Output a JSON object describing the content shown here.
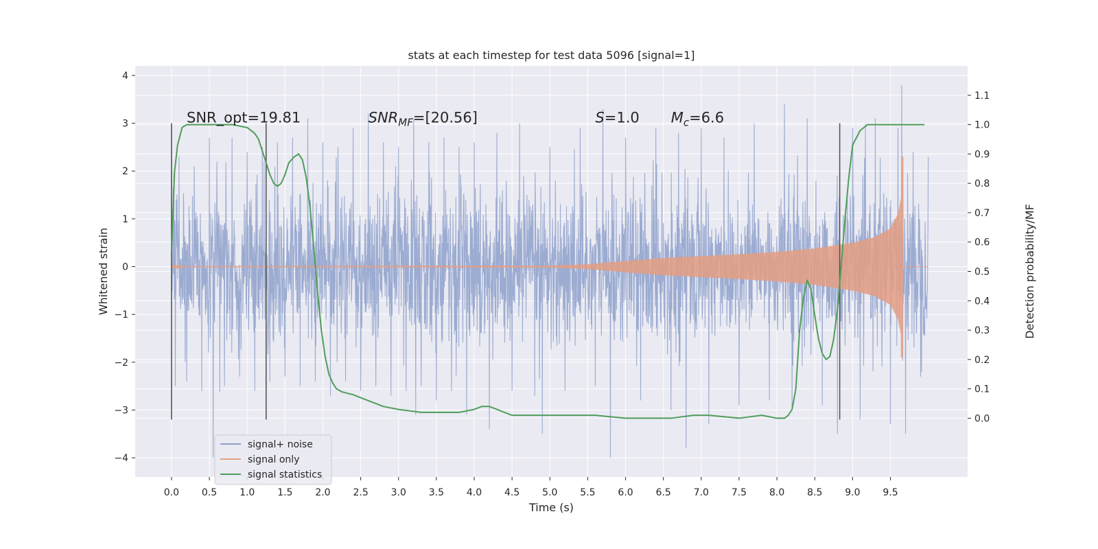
{
  "chart_data": {
    "type": "line",
    "title": "stats at each timestep for test data 5096 [signal=1]",
    "xlabel": "Time (s)",
    "ylabel_left": "Whitened strain",
    "ylabel_right": "Detection probability/MF",
    "xlim": [
      -0.48,
      10.52
    ],
    "ylim_left": [
      -4.4,
      4.2
    ],
    "ylim_right": [
      -0.2,
      1.2
    ],
    "x_ticks": [
      0.0,
      0.5,
      1.0,
      1.5,
      2.0,
      2.5,
      3.0,
      3.5,
      4.0,
      4.5,
      5.0,
      5.5,
      6.0,
      6.5,
      7.0,
      7.5,
      8.0,
      8.5,
      9.0,
      9.5
    ],
    "x_tick_labels": [
      "0.0",
      "0.5",
      "1.0",
      "1.5",
      "2.0",
      "2.5",
      "3.0",
      "3.5",
      "4.0",
      "4.5",
      "5.0",
      "5.5",
      "6.0",
      "6.5",
      "7.0",
      "7.5",
      "8.0",
      "8.5",
      "9.0",
      "9.5"
    ],
    "y_left_ticks": [
      -4,
      -3,
      -2,
      -1,
      0,
      1,
      2,
      3,
      4
    ],
    "y_left_tick_labels": [
      "−4",
      "−3",
      "−2",
      "−1",
      "0",
      "1",
      "2",
      "3",
      "4"
    ],
    "y_right_ticks": [
      0.0,
      0.1,
      0.2,
      0.3,
      0.4,
      0.5,
      0.6,
      0.7,
      0.8,
      0.9,
      1.0,
      1.1
    ],
    "y_right_tick_labels": [
      "0.0",
      "0.1",
      "0.2",
      "0.3",
      "0.4",
      "0.5",
      "0.6",
      "0.7",
      "0.8",
      "0.9",
      "1.0",
      "1.1"
    ],
    "grid": true,
    "legend_position": "lower-left",
    "series": [
      {
        "name": "signal+ noise",
        "color": "#8da0cb",
        "axis": "left",
        "x_range": [
          0.0,
          10.0
        ],
        "typical_amplitude": 1.8,
        "peak_values": [
          -4.0,
          3.8
        ],
        "samples": [
          [
            0.0,
            1.9
          ],
          [
            0.05,
            -2.5
          ],
          [
            0.1,
            2.3
          ],
          [
            0.2,
            -2.4
          ],
          [
            0.3,
            2.1
          ],
          [
            0.4,
            -2.6
          ],
          [
            0.5,
            2.7
          ],
          [
            0.55,
            -4.0
          ],
          [
            0.6,
            2.2
          ],
          [
            0.7,
            -2.5
          ],
          [
            0.8,
            2.7
          ],
          [
            0.9,
            -2.3
          ],
          [
            1.0,
            2.4
          ],
          [
            1.1,
            -2.6
          ],
          [
            1.2,
            2.5
          ],
          [
            1.3,
            -2.4
          ],
          [
            1.4,
            2.6
          ],
          [
            1.5,
            -2.3
          ],
          [
            1.6,
            2.7
          ],
          [
            1.7,
            -2.5
          ],
          [
            1.8,
            3.1
          ],
          [
            1.9,
            -2.4
          ],
          [
            2.0,
            2.6
          ],
          [
            2.1,
            -2.7
          ],
          [
            2.2,
            2.5
          ],
          [
            2.3,
            -2.4
          ],
          [
            2.4,
            2.9
          ],
          [
            2.5,
            -2.6
          ],
          [
            2.6,
            3.2
          ],
          [
            2.7,
            -2.5
          ],
          [
            2.8,
            2.6
          ],
          [
            2.9,
            -2.7
          ],
          [
            3.0,
            2.5
          ],
          [
            3.1,
            -2.6
          ],
          [
            3.2,
            3.1
          ],
          [
            3.3,
            -2.5
          ],
          [
            3.4,
            2.6
          ],
          [
            3.5,
            -2.8
          ],
          [
            3.6,
            2.7
          ],
          [
            3.7,
            -2.6
          ],
          [
            3.8,
            2.5
          ],
          [
            3.9,
            -3.1
          ],
          [
            4.0,
            2.6
          ],
          [
            4.2,
            -3.4
          ],
          [
            4.3,
            2.8
          ],
          [
            4.5,
            -2.6
          ],
          [
            4.6,
            3.0
          ],
          [
            4.8,
            -2.7
          ],
          [
            4.9,
            -3.5
          ],
          [
            5.0,
            2.5
          ],
          [
            5.2,
            -2.6
          ],
          [
            5.4,
            2.9
          ],
          [
            5.6,
            -2.5
          ],
          [
            5.7,
            3.3
          ],
          [
            5.8,
            -4.0
          ],
          [
            6.0,
            2.7
          ],
          [
            6.2,
            -2.8
          ],
          [
            6.4,
            2.9
          ],
          [
            6.6,
            -3.0
          ],
          [
            6.7,
            2.8
          ],
          [
            6.8,
            -3.8
          ],
          [
            7.0,
            2.9
          ],
          [
            7.1,
            -3.3
          ],
          [
            7.3,
            2.7
          ],
          [
            7.5,
            -2.9
          ],
          [
            7.7,
            3.0
          ],
          [
            7.9,
            -2.8
          ],
          [
            8.1,
            3.4
          ],
          [
            8.2,
            -3.0
          ],
          [
            8.4,
            3.1
          ],
          [
            8.6,
            -2.9
          ],
          [
            8.8,
            -3.5
          ],
          [
            9.0,
            2.9
          ],
          [
            9.1,
            -3.2
          ],
          [
            9.3,
            3.1
          ],
          [
            9.5,
            -3.3
          ],
          [
            9.6,
            2.9
          ],
          [
            9.65,
            3.8
          ],
          [
            9.7,
            -3.5
          ],
          [
            9.8,
            2.4
          ],
          [
            9.9,
            -2.3
          ],
          [
            10.0,
            2.3
          ]
        ]
      },
      {
        "name": "signal only",
        "color": "#e49d82",
        "axis": "left",
        "envelope_x": [
          0.0,
          5.0,
          5.5,
          6.0,
          6.5,
          7.0,
          7.5,
          8.0,
          8.5,
          9.0,
          9.3,
          9.5,
          9.6,
          9.65,
          9.67,
          10.0
        ],
        "envelope_y": [
          0.01,
          0.02,
          0.05,
          0.12,
          0.18,
          0.22,
          0.26,
          0.31,
          0.38,
          0.5,
          0.62,
          0.8,
          1.1,
          1.5,
          0.0,
          0.0
        ],
        "peak_values": [
          -1.9,
          2.3
        ]
      },
      {
        "name": "signal statistics",
        "color": "#4f9d5a",
        "axis": "right",
        "x": [
          0.0,
          0.04,
          0.08,
          0.14,
          0.2,
          0.3,
          0.5,
          0.8,
          1.0,
          1.1,
          1.15,
          1.2,
          1.25,
          1.3,
          1.35,
          1.4,
          1.45,
          1.5,
          1.55,
          1.62,
          1.68,
          1.73,
          1.78,
          1.83,
          1.88,
          1.93,
          1.98,
          2.03,
          2.08,
          2.13,
          2.18,
          2.25,
          2.4,
          2.6,
          2.8,
          3.0,
          3.3,
          3.6,
          3.8,
          4.0,
          4.1,
          4.2,
          4.3,
          4.5,
          4.8,
          5.0,
          5.3,
          5.6,
          6.0,
          6.3,
          6.6,
          6.9,
          7.1,
          7.5,
          7.8,
          8.0,
          8.1,
          8.15,
          8.2,
          8.25,
          8.3,
          8.35,
          8.4,
          8.45,
          8.5,
          8.55,
          8.6,
          8.65,
          8.7,
          8.75,
          8.8,
          8.85,
          8.9,
          8.95,
          9.0,
          9.1,
          9.2,
          9.5,
          9.95
        ],
        "values": [
          0.57,
          0.84,
          0.93,
          0.99,
          1.0,
          1.0,
          1.0,
          1.0,
          0.99,
          0.97,
          0.95,
          0.91,
          0.87,
          0.83,
          0.8,
          0.79,
          0.8,
          0.83,
          0.87,
          0.89,
          0.9,
          0.88,
          0.82,
          0.72,
          0.58,
          0.43,
          0.3,
          0.21,
          0.15,
          0.12,
          0.1,
          0.09,
          0.08,
          0.06,
          0.04,
          0.03,
          0.02,
          0.02,
          0.02,
          0.03,
          0.04,
          0.04,
          0.03,
          0.01,
          0.01,
          0.01,
          0.01,
          0.01,
          0.0,
          0.0,
          0.0,
          0.01,
          0.01,
          0.0,
          0.01,
          0.0,
          0.0,
          0.01,
          0.03,
          0.1,
          0.3,
          0.41,
          0.47,
          0.44,
          0.35,
          0.27,
          0.22,
          0.2,
          0.21,
          0.27,
          0.37,
          0.52,
          0.68,
          0.82,
          0.93,
          0.98,
          1.0,
          1.0,
          1.0
        ]
      }
    ],
    "vertical_markers": [
      0.0,
      1.25,
      8.83
    ],
    "vertical_marker_range_left": [
      -3.2,
      3.0
    ],
    "annotations": [
      {
        "label": "SNR_opt=19.81",
        "x": 0.2,
        "y": 3.0
      },
      {
        "label_main": "SNR",
        "label_sub": "MF",
        "label_rest": "=[20.56]",
        "x": 2.6,
        "y": 3.0
      },
      {
        "label_main": "S",
        "label_rest": "=1.0",
        "x": 5.6,
        "y": 3.0
      },
      {
        "label_main": "M",
        "label_sub": "c",
        "label_rest": "=6.6",
        "x": 6.6,
        "y": 3.0
      }
    ],
    "colors": {
      "background": "#eaeaf2",
      "grid": "#ffffff",
      "marker": "#555555",
      "text": "#262626"
    }
  }
}
